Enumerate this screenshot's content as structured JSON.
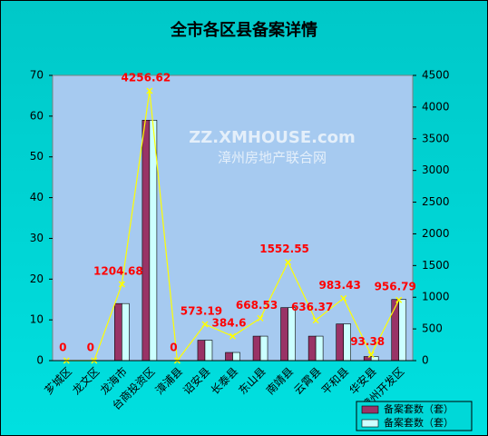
{
  "chart_data": {
    "type": "bar",
    "title": "全市各区县备案详情",
    "watermark": [
      "ZZ.XMHOUSE.com",
      "漳州房地产联合网"
    ],
    "categories": [
      "芗城区",
      "龙文区",
      "龙海市",
      "台商投资区",
      "漳浦县",
      "诏安县",
      "长泰县",
      "东山县",
      "南靖县",
      "云霄县",
      "平和县",
      "华安县",
      "漳州开发区"
    ],
    "series": [
      {
        "name": "备案套数（套）",
        "color": "#993366",
        "values": [
          0,
          0,
          14,
          59,
          0,
          5,
          2,
          6,
          13,
          6,
          9,
          1,
          15
        ]
      },
      {
        "name": "备案套数（套）",
        "color": "#ccffff",
        "values": [
          0,
          0,
          14,
          59,
          0,
          5,
          2,
          6,
          13,
          6,
          9,
          1,
          15
        ]
      },
      {
        "type": "line",
        "axis": "y2",
        "color": "#ffff00",
        "label_color": "#ff0000",
        "values": [
          0,
          0,
          1204.68,
          4256.62,
          0,
          573.19,
          384.6,
          668.53,
          1552.55,
          636.37,
          983.43,
          93.38,
          956.79
        ]
      }
    ],
    "ylim": [
      0,
      70
    ],
    "yticks": [
      0,
      10,
      20,
      30,
      40,
      50,
      60,
      70
    ],
    "y2lim": [
      0,
      4500
    ],
    "y2ticks": [
      0,
      500,
      1000,
      1500,
      2000,
      2500,
      3000,
      3500,
      4000,
      4500
    ],
    "legend": "bottom-right"
  }
}
